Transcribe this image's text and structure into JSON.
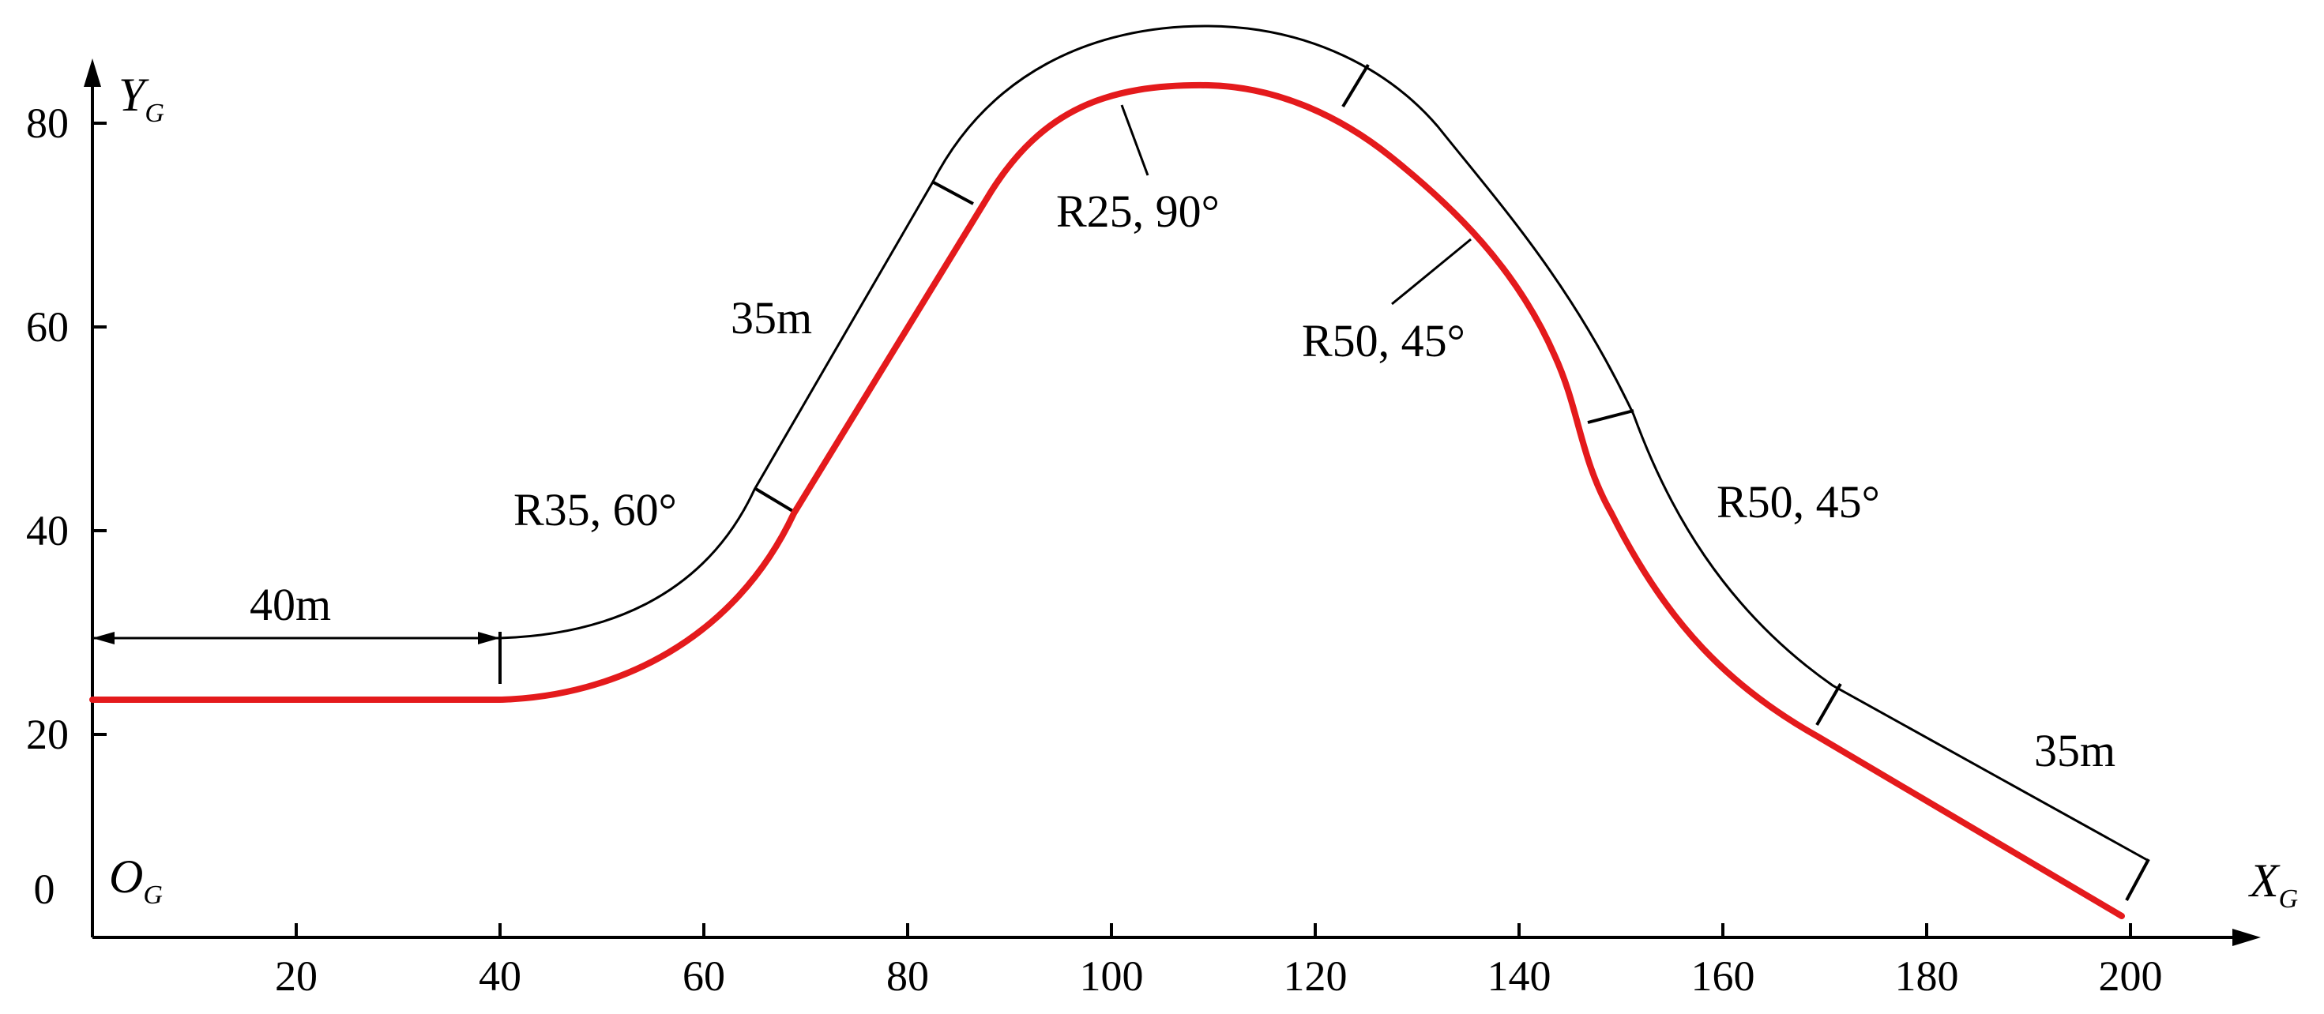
{
  "axes": {
    "x_name": "X",
    "x_sub": "G",
    "y_name": "Y",
    "y_sub": "G",
    "origin_name": "O",
    "origin_sub": "G",
    "x_ticks": [
      "20",
      "40",
      "60",
      "80",
      "100",
      "120",
      "140",
      "160",
      "180",
      "200"
    ],
    "y_ticks": [
      "0",
      "20",
      "40",
      "60",
      "80"
    ]
  },
  "segments": [
    {
      "id": "straight-1",
      "label": "40m"
    },
    {
      "id": "arc-1",
      "label": "R35, 60°"
    },
    {
      "id": "straight-2",
      "label": "35m"
    },
    {
      "id": "arc-2",
      "label": "R25, 90°"
    },
    {
      "id": "arc-3",
      "label": "R50, 45°"
    },
    {
      "id": "arc-4",
      "label": "R50, 45°"
    },
    {
      "id": "straight-3",
      "label": "35m"
    }
  ],
  "colors": {
    "path": "#e41a1c",
    "lines": "#000000"
  }
}
